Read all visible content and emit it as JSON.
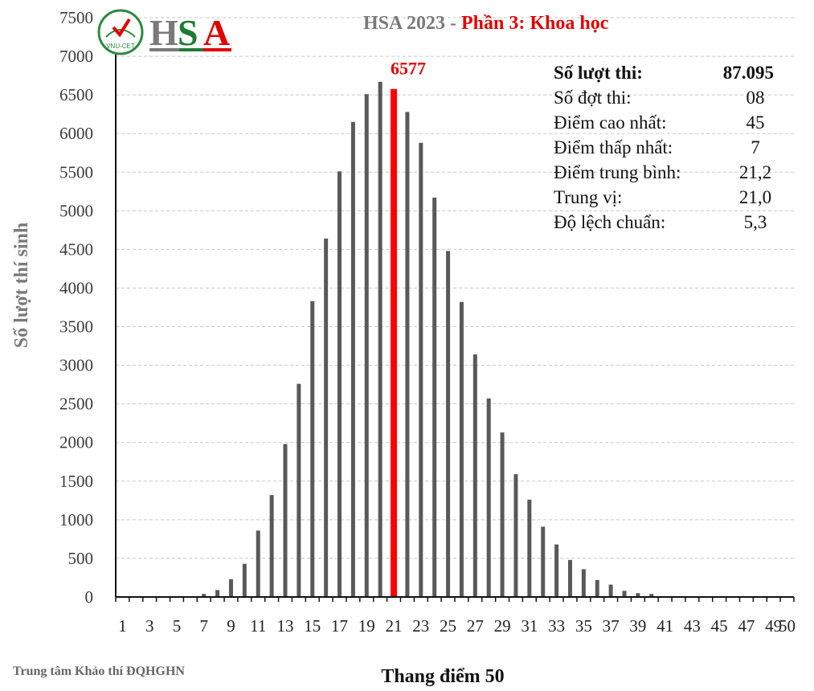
{
  "logo": {
    "badge_text": "VNU-CET",
    "brand_letters": [
      "H",
      "S",
      "A"
    ],
    "brand_colors": [
      "#7a7a7a",
      "#1f7a35",
      "#e10000"
    ]
  },
  "title": {
    "part1": "HSA 2023 - ",
    "part2": "Phần 3: Khoa học"
  },
  "stats": [
    {
      "label": "Số lượt thi:",
      "value": "87.095",
      "bold": true
    },
    {
      "label": "Số đợt thi:",
      "value": "08",
      "bold": false
    },
    {
      "label": "Điểm cao nhất:",
      "value": "45",
      "bold": false
    },
    {
      "label": "Điểm thấp nhất:",
      "value": "7",
      "bold": false
    },
    {
      "label": "Điểm trung bình:",
      "value": "21,2",
      "bold": false
    },
    {
      "label": "Trung vị:",
      "value": "21,0",
      "bold": false
    },
    {
      "label": "Độ lệch chuẩn:",
      "value": "5,3",
      "bold": false
    }
  ],
  "source": "Trung  tâm Khảo thí ĐQHGHN",
  "chart_data": {
    "type": "bar",
    "title": "HSA 2023 - Phần 3: Khoa học",
    "xlabel": "Thang điểm 50",
    "ylabel": "Số lượt thí sinh",
    "ylim": [
      0,
      7500
    ],
    "yticks": [
      0,
      500,
      1000,
      1500,
      2000,
      2500,
      3000,
      3500,
      4000,
      4500,
      5000,
      5500,
      6000,
      6500,
      7000,
      7500
    ],
    "x_tick_labels": [
      1,
      3,
      5,
      7,
      9,
      11,
      13,
      15,
      17,
      19,
      21,
      23,
      25,
      27,
      29,
      31,
      33,
      35,
      37,
      39,
      41,
      43,
      45,
      47,
      49,
      50
    ],
    "grid": true,
    "highlight": {
      "x": 21,
      "value": 6577,
      "label": "6577",
      "color": "#ff0000"
    },
    "bar_color": "#595959",
    "x": [
      1,
      2,
      3,
      4,
      5,
      6,
      7,
      8,
      9,
      10,
      11,
      12,
      13,
      14,
      15,
      16,
      17,
      18,
      19,
      20,
      21,
      22,
      23,
      24,
      25,
      26,
      27,
      28,
      29,
      30,
      31,
      32,
      33,
      34,
      35,
      36,
      37,
      38,
      39,
      40,
      41,
      42,
      43,
      44,
      45,
      46,
      47,
      48,
      49,
      50
    ],
    "values": [
      0,
      0,
      0,
      0,
      0,
      0,
      40,
      90,
      230,
      430,
      860,
      1320,
      1980,
      2760,
      3830,
      4640,
      5510,
      6150,
      6510,
      6670,
      6577,
      6280,
      5880,
      5170,
      4480,
      3820,
      3140,
      2570,
      2130,
      1590,
      1260,
      910,
      680,
      480,
      360,
      220,
      160,
      80,
      50,
      40,
      0,
      0,
      0,
      0,
      0,
      0,
      0,
      0,
      0,
      0
    ]
  }
}
